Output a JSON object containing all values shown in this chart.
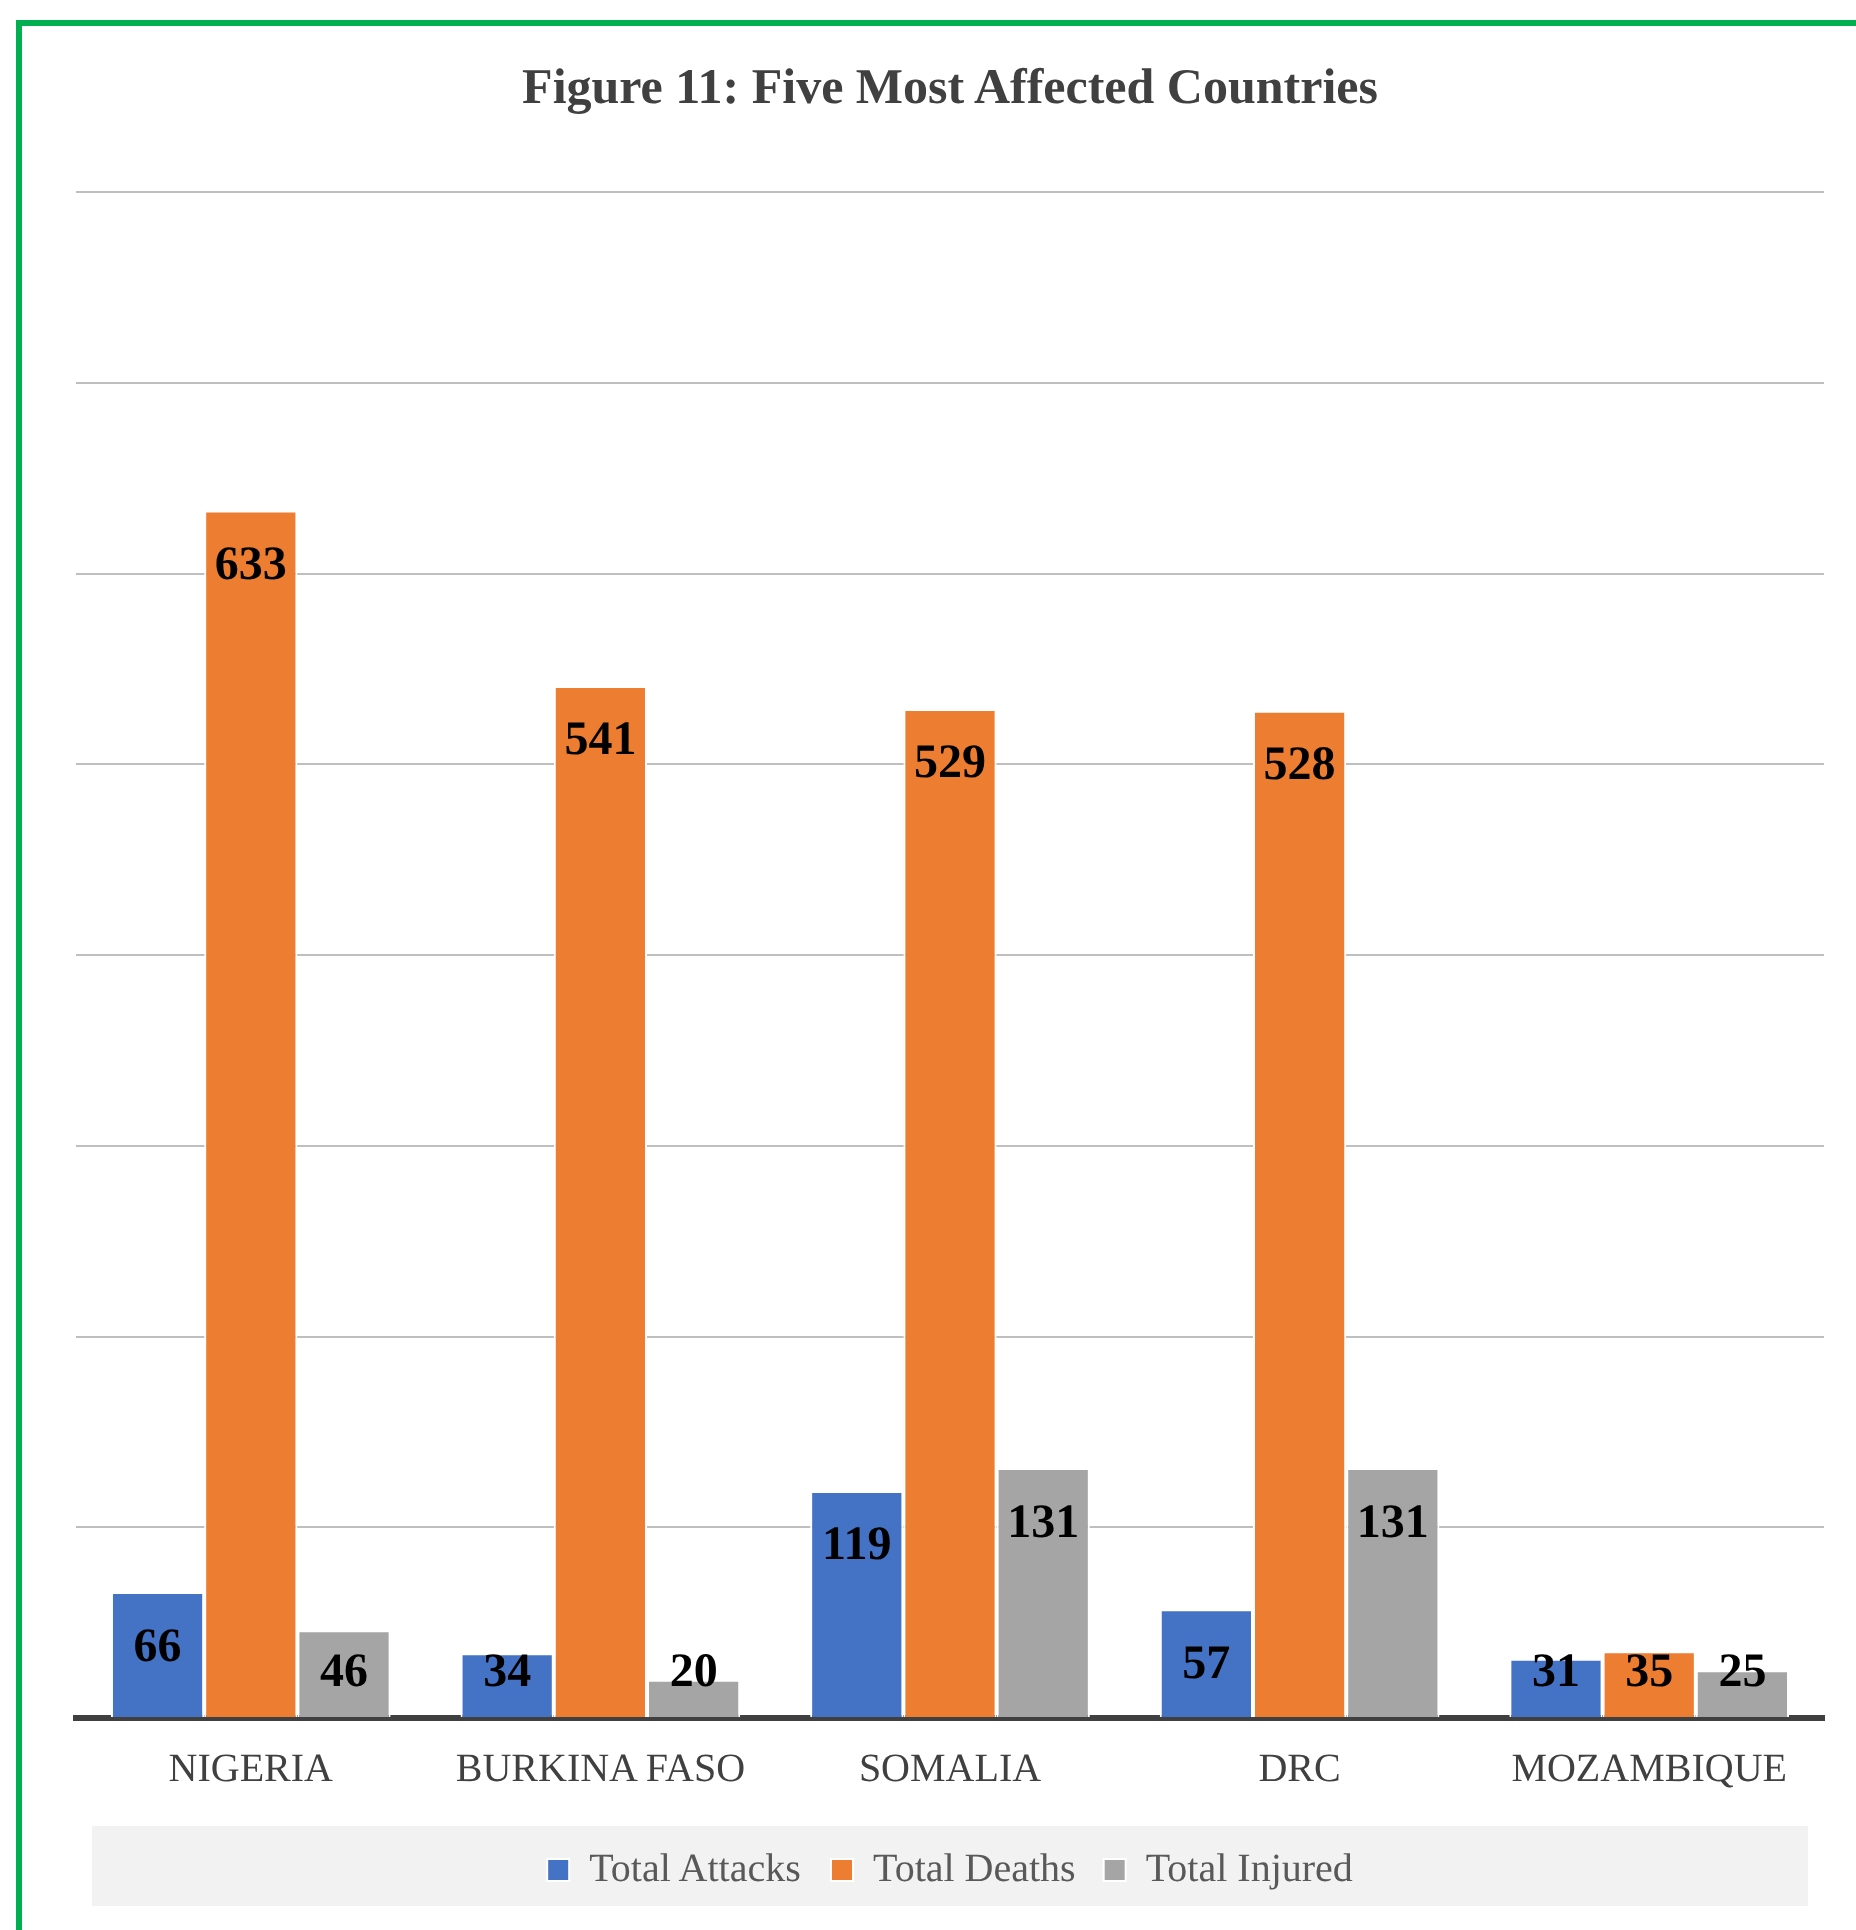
{
  "chart_data": {
    "type": "bar",
    "title": "Figure 11: Five Most Affected Countries",
    "categories": [
      "NIGERIA",
      "BURKINA FASO",
      "SOMALIA",
      "DRC",
      "MOZAMBIQUE"
    ],
    "series": [
      {
        "name": "Total Attacks",
        "color": "#4472c4",
        "values": [
          66,
          34,
          119,
          57,
          31
        ]
      },
      {
        "name": "Total Deaths",
        "color": "#ed7d31",
        "values": [
          633,
          541,
          529,
          528,
          35
        ]
      },
      {
        "name": "Total Injured",
        "color": "#a5a5a5",
        "values": [
          46,
          20,
          131,
          131,
          25
        ]
      }
    ],
    "ylim": [
      0,
      800
    ],
    "yticks": [
      {
        "value": 0,
        "label": null
      },
      {
        "value": 100,
        "label": null
      },
      {
        "value": 200,
        "label": null
      },
      {
        "value": 300,
        "label": null
      },
      {
        "value": 400,
        "label": null
      },
      {
        "value": 500,
        "label": null
      },
      {
        "value": 600,
        "label": null
      },
      {
        "value": 700,
        "label": null
      },
      {
        "value": 800,
        "label": null
      }
    ],
    "tick_labels": "x",
    "grid": "y",
    "legend": "bottom",
    "data_labels": true
  }
}
